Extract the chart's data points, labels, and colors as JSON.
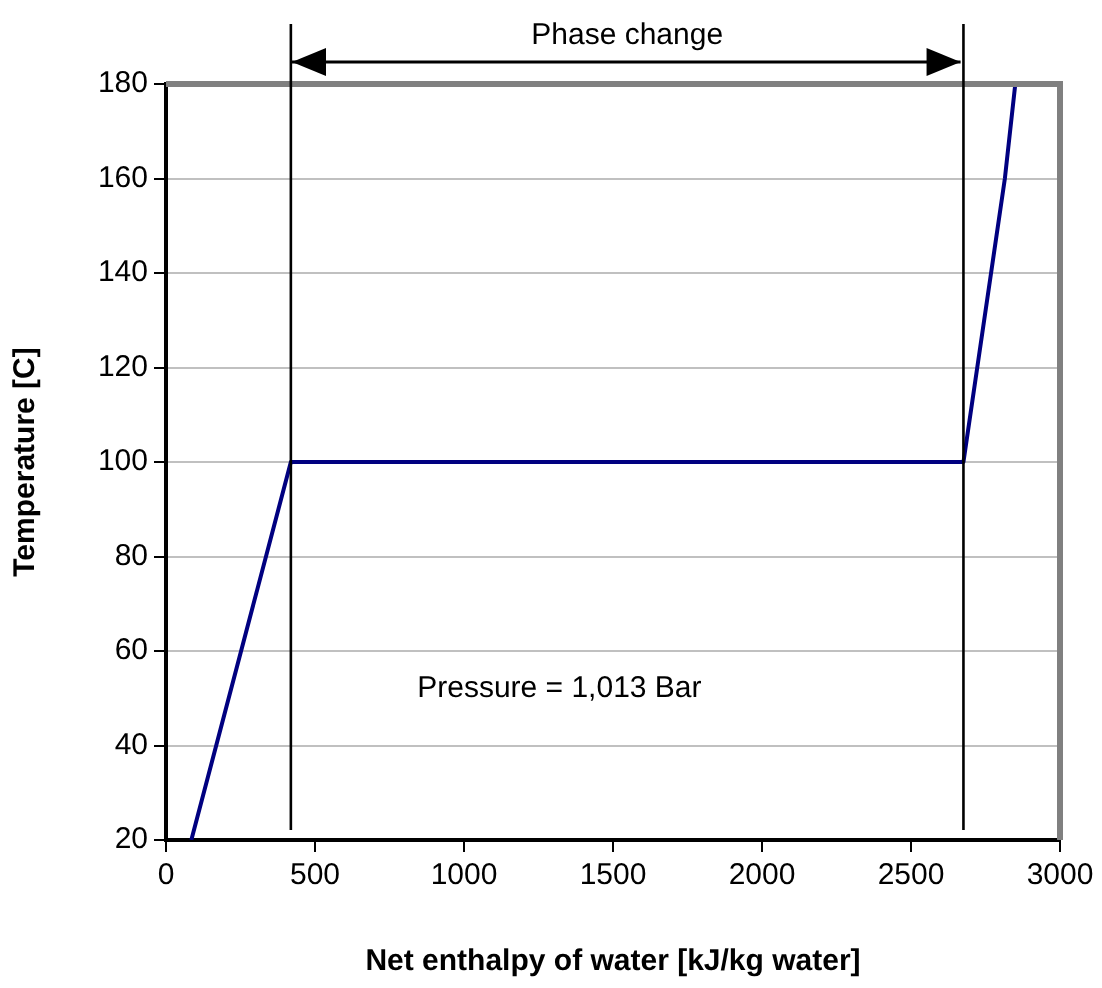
{
  "chart_data": {
    "type": "line",
    "xlabel": "Net enthalpy of water [kJ/kg water]",
    "ylabel": "Temperature [C]",
    "x": [
      85,
      419,
      2676,
      2815,
      2850
    ],
    "series": [
      {
        "color": "#000080",
        "values": [
          20,
          100,
          100,
          160,
          180
        ]
      }
    ],
    "xlim": [
      0,
      3000
    ],
    "xticks": [
      0,
      500,
      1000,
      1500,
      2000,
      2500,
      3000
    ],
    "ylim": [
      20,
      180
    ],
    "yticks": [
      20,
      40,
      60,
      80,
      100,
      120,
      140,
      160,
      180
    ],
    "ref_lines": [
      {
        "axis": "x",
        "value": 419,
        "color": "#000000"
      },
      {
        "axis": "x",
        "value": 2676,
        "color": "#000000"
      }
    ],
    "annotations": [
      "Phase change",
      "Pressure = 1,013 Bar"
    ],
    "grid": "y",
    "legend": false,
    "marker": "none",
    "line_style": "solid"
  }
}
